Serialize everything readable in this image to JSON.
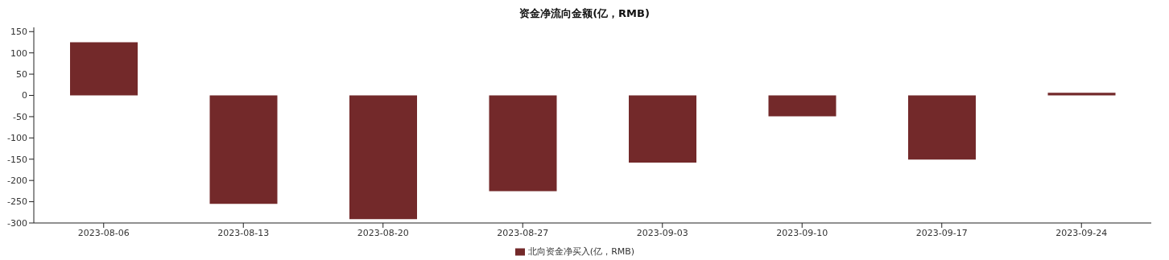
{
  "chart_data": {
    "type": "bar",
    "title": "资金净流向金额(亿，RMB)",
    "categories": [
      "2023-08-06",
      "2023-08-13",
      "2023-08-20",
      "2023-08-27",
      "2023-09-03",
      "2023-09-10",
      "2023-09-17",
      "2023-09-24"
    ],
    "series": [
      {
        "name": "北向资金净买入(亿，RMB)",
        "color": "#73292a",
        "values": [
          125,
          -255,
          -291,
          -225,
          -158,
          -49,
          -151,
          6
        ]
      }
    ],
    "ylim": [
      -300,
      160
    ],
    "yticks": [
      -300,
      -250,
      -200,
      -150,
      -100,
      -50,
      0,
      50,
      100,
      150
    ],
    "grid": false,
    "legend": "bottom"
  }
}
